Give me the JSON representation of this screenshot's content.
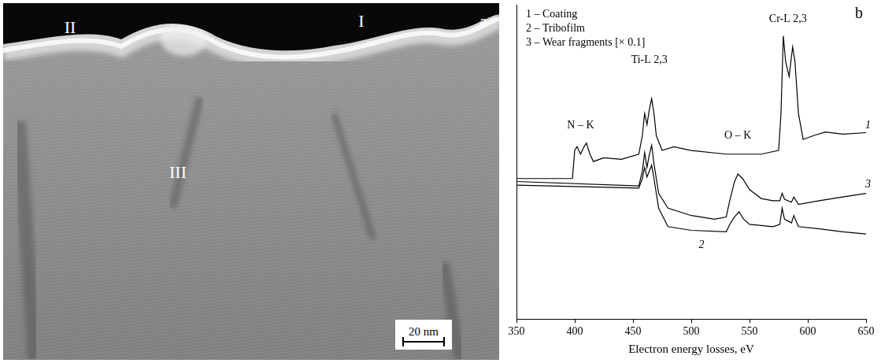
{
  "micrograph": {
    "letter": "a",
    "regions": [
      "I",
      "II",
      "III"
    ],
    "scale_bar": "20 nm"
  },
  "chart_data": {
    "type": "line",
    "letter": "b",
    "x_label": "Electron energy losses, eV",
    "xlim": [
      350,
      650
    ],
    "xticks": [
      350,
      400,
      450,
      500,
      550,
      600,
      650
    ],
    "ylim": [
      0,
      425
    ],
    "tick_labels": "x",
    "grid": false,
    "legend": "top-left",
    "series": [
      {
        "name": "1 – Coating",
        "label": "1",
        "label_at": [
          648,
          262
        ],
        "color": "#000000",
        "x": [
          350,
          398,
          400,
          402,
          405,
          408,
          410,
          413,
          416,
          425,
          440,
          455,
          458,
          460,
          462,
          464,
          466,
          468,
          470,
          475,
          485,
          500,
          530,
          560,
          575,
          577,
          579,
          581,
          584,
          587,
          589,
          592,
          596,
          605,
          615,
          630,
          650
        ],
        "values": [
          190,
          190,
          228,
          233,
          223,
          233,
          238,
          223,
          213,
          218,
          216,
          223,
          248,
          278,
          263,
          283,
          298,
          278,
          248,
          228,
          233,
          228,
          223,
          223,
          228,
          278,
          383,
          348,
          328,
          368,
          348,
          278,
          243,
          248,
          253,
          250,
          252
        ]
      },
      {
        "name": "2 – Tribofilm",
        "label": "2",
        "label_at": [
          505,
          100
        ],
        "color": "#000000",
        "x": [
          350,
          455,
          458,
          460,
          462,
          464,
          466,
          468,
          472,
          480,
          500,
          530,
          533,
          537,
          541,
          545,
          550,
          570,
          576,
          578,
          580,
          586,
          588,
          592,
          610,
          630,
          650
        ],
        "values": [
          181,
          177,
          190,
          205,
          192,
          200,
          208,
          190,
          150,
          125,
          120,
          118,
          128,
          138,
          145,
          135,
          128,
          125,
          128,
          150,
          135,
          130,
          140,
          125,
          122,
          118,
          115
        ]
      },
      {
        "name": "3 – Wear fragments [× 0.1]",
        "label": "3",
        "label_at": [
          648,
          182
        ],
        "color": "#000000",
        "x": [
          350,
          455,
          458,
          460,
          462,
          464,
          466,
          468,
          472,
          480,
          500,
          520,
          530,
          533,
          537,
          540,
          544,
          550,
          560,
          570,
          576,
          578,
          580,
          586,
          588,
          592,
          610,
          630,
          650
        ],
        "values": [
          186,
          180,
          200,
          225,
          205,
          222,
          235,
          210,
          170,
          150,
          140,
          135,
          138,
          160,
          185,
          196,
          190,
          175,
          163,
          160,
          160,
          170,
          162,
          158,
          165,
          155,
          160,
          165,
          170
        ]
      }
    ],
    "annotations": [
      {
        "text": "N – K",
        "x": 405,
        "y": 262
      },
      {
        "text": "Ti-L 2,3",
        "x": 464,
        "y": 350
      },
      {
        "text": "O – K",
        "x": 540,
        "y": 248
      },
      {
        "text": "Cr-L 2,3",
        "x": 583,
        "y": 405
      }
    ]
  }
}
